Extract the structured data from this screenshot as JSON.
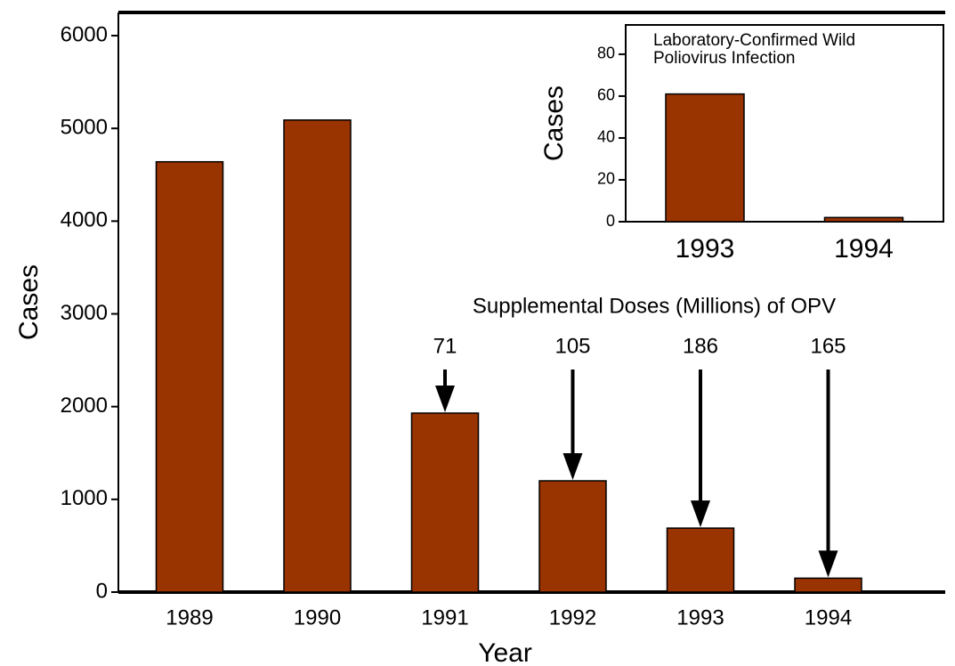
{
  "charts": [
    {
      "type": "bar",
      "categories": [
        "1989",
        "1990",
        "1991",
        "1992",
        "1993",
        "1994"
      ],
      "values": [
        4640,
        5090,
        1930,
        1200,
        690,
        150
      ],
      "color": "#993300",
      "ylim": [
        0,
        6250
      ],
      "yticks": [
        0,
        1000,
        2000,
        3000,
        4000,
        5000,
        6000
      ],
      "xlabel": "Year",
      "ylabel": "Cases",
      "annotation": "Supplemental Doses (Millions) of OPV",
      "doses": [
        null,
        null,
        71,
        105,
        186,
        165
      ]
    },
    {
      "type": "bar",
      "title": "Laboratory-Confirmed Wild Poliovirus Infection",
      "categories": [
        "1993",
        "1994"
      ],
      "values": [
        61,
        2
      ],
      "color": "#993300",
      "ylim": [
        0,
        94
      ],
      "yticks": [
        0,
        20,
        40,
        60,
        80
      ],
      "ylabel": "Cases"
    }
  ]
}
